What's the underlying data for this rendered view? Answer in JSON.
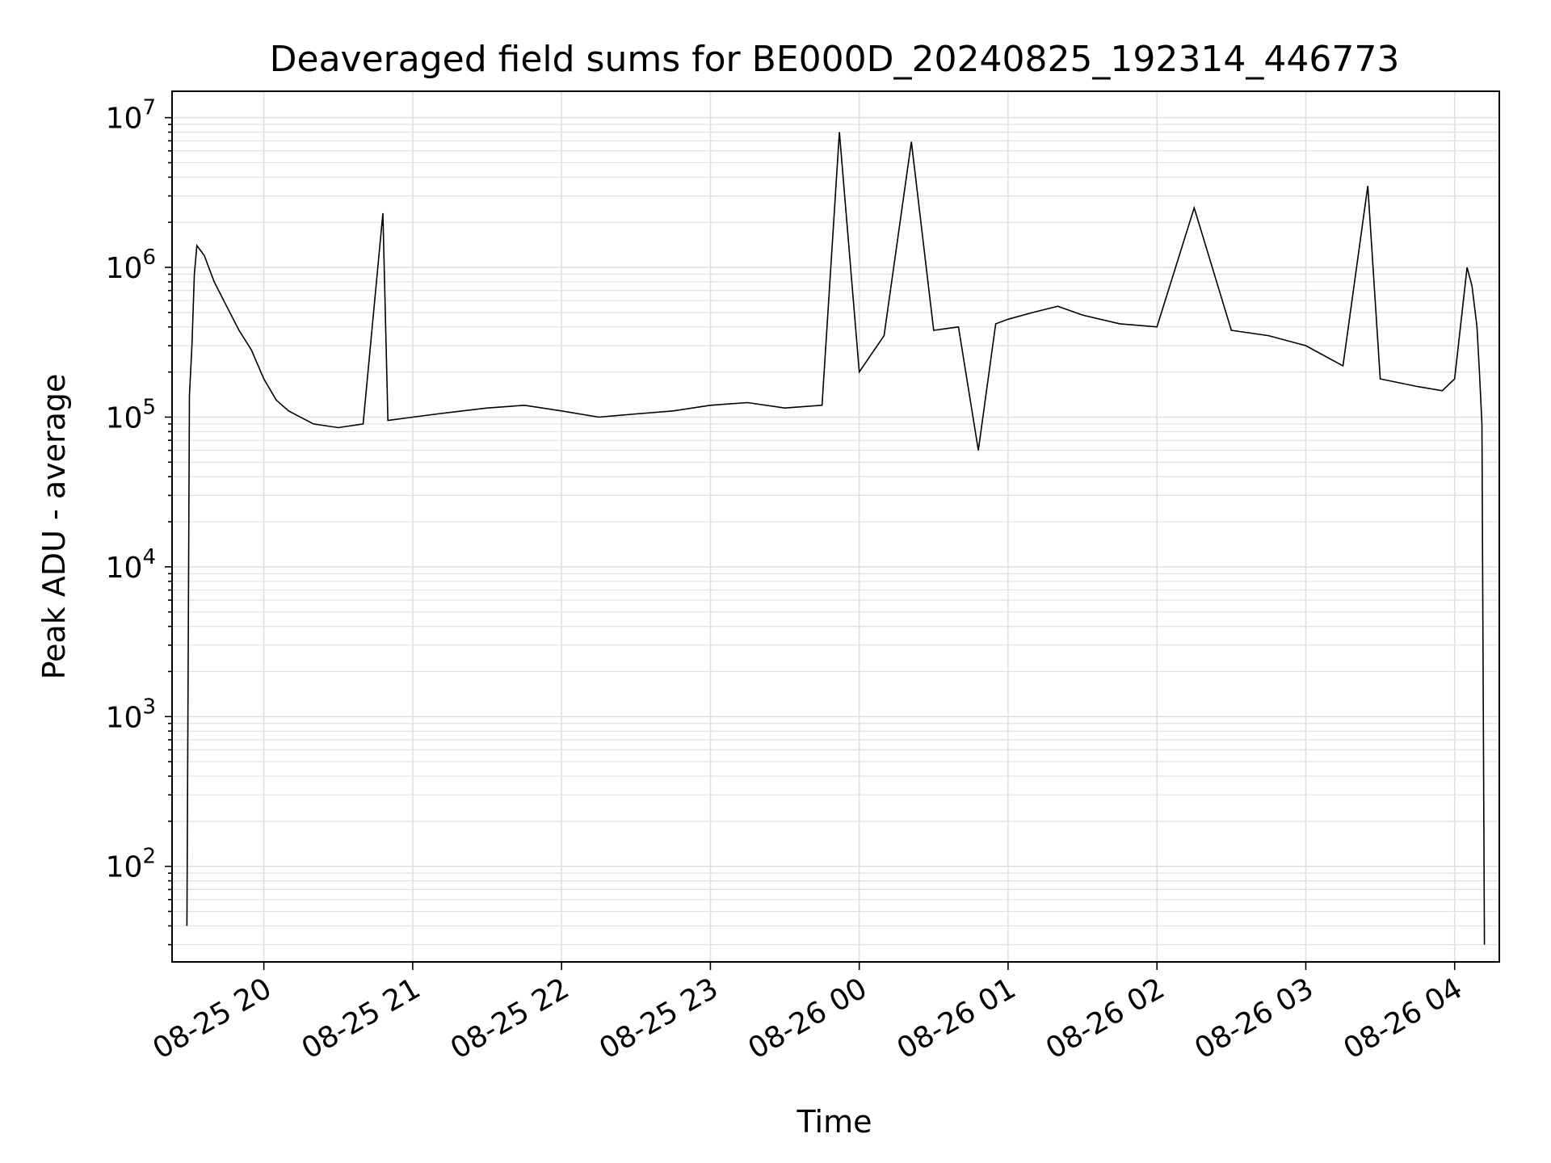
{
  "chart_data": {
    "type": "line",
    "title": "Deaveraged field sums for BE000D_20240825_192314_446773",
    "xlabel": "Time",
    "ylabel": "Peak ADU - average",
    "x_tick_labels": [
      "08-25 20",
      "08-25 21",
      "08-25 22",
      "08-25 23",
      "08-26 00",
      "08-26 01",
      "08-26 02",
      "08-26 03",
      "08-26 04"
    ],
    "x_ticks": [
      "2024-08-25 20:00",
      "2024-08-25 21:00",
      "2024-08-25 22:00",
      "2024-08-25 23:00",
      "2024-08-26 00:00",
      "2024-08-26 01:00",
      "2024-08-26 02:00",
      "2024-08-26 03:00",
      "2024-08-26 04:00"
    ],
    "xlim": [
      "2024-08-25 19:23",
      "2024-08-26 04:18"
    ],
    "y_scale": "log",
    "ylim": [
      23,
      15000000
    ],
    "y_tick_labels": [
      {
        "base": "10",
        "exp": "2"
      },
      {
        "base": "10",
        "exp": "3"
      },
      {
        "base": "10",
        "exp": "4"
      },
      {
        "base": "10",
        "exp": "5"
      },
      {
        "base": "10",
        "exp": "6"
      },
      {
        "base": "10",
        "exp": "7"
      }
    ],
    "y_tick_values": [
      100,
      1000,
      10000,
      100000,
      1000000,
      10000000
    ],
    "grid": true,
    "line_color": "#000000",
    "grid_color": "#e0e0e0",
    "series": [
      {
        "x": [
          "2024-08-25 19:29",
          "2024-08-25 19:30",
          "2024-08-25 19:31",
          "2024-08-25 19:32",
          "2024-08-25 19:33",
          "2024-08-25 19:36",
          "2024-08-25 19:40",
          "2024-08-25 19:45",
          "2024-08-25 19:50",
          "2024-08-25 19:55",
          "2024-08-25 20:00",
          "2024-08-25 20:05",
          "2024-08-25 20:10",
          "2024-08-25 20:20",
          "2024-08-25 20:30",
          "2024-08-25 20:40",
          "2024-08-25 20:48",
          "2024-08-25 20:50",
          "2024-08-25 21:00",
          "2024-08-25 21:10",
          "2024-08-25 21:20",
          "2024-08-25 21:30",
          "2024-08-25 21:45",
          "2024-08-25 22:00",
          "2024-08-25 22:15",
          "2024-08-25 22:30",
          "2024-08-25 22:45",
          "2024-08-25 23:00",
          "2024-08-25 23:15",
          "2024-08-25 23:30",
          "2024-08-25 23:45",
          "2024-08-25 23:52",
          "2024-08-26 00:00",
          "2024-08-26 00:10",
          "2024-08-26 00:21",
          "2024-08-26 00:30",
          "2024-08-26 00:40",
          "2024-08-26 00:48",
          "2024-08-26 00:55",
          "2024-08-26 01:00",
          "2024-08-26 01:10",
          "2024-08-26 01:20",
          "2024-08-26 01:30",
          "2024-08-26 01:45",
          "2024-08-26 02:00",
          "2024-08-26 02:15",
          "2024-08-26 02:30",
          "2024-08-26 02:45",
          "2024-08-26 03:00",
          "2024-08-26 03:15",
          "2024-08-26 03:25",
          "2024-08-26 03:30",
          "2024-08-26 03:45",
          "2024-08-26 03:55",
          "2024-08-26 04:00",
          "2024-08-26 04:03",
          "2024-08-26 04:05",
          "2024-08-26 04:07",
          "2024-08-26 04:09",
          "2024-08-26 04:10",
          "2024-08-26 04:11",
          "2024-08-26 04:12"
        ],
        "y": [
          40,
          140000,
          300000,
          900000,
          1400000,
          1200000,
          800000,
          550000,
          380000,
          280000,
          180000,
          130000,
          110000,
          90000,
          85000,
          90000,
          2300000,
          95000,
          100000,
          105000,
          110000,
          115000,
          120000,
          110000,
          100000,
          105000,
          110000,
          120000,
          125000,
          115000,
          120000,
          8000000,
          200000,
          350000,
          6900000,
          380000,
          400000,
          60000,
          420000,
          450000,
          500000,
          550000,
          480000,
          420000,
          400000,
          2500000,
          380000,
          350000,
          300000,
          220000,
          3500000,
          180000,
          160000,
          150000,
          180000,
          500000,
          1000000,
          750000,
          400000,
          200000,
          90000,
          30
        ]
      }
    ]
  }
}
